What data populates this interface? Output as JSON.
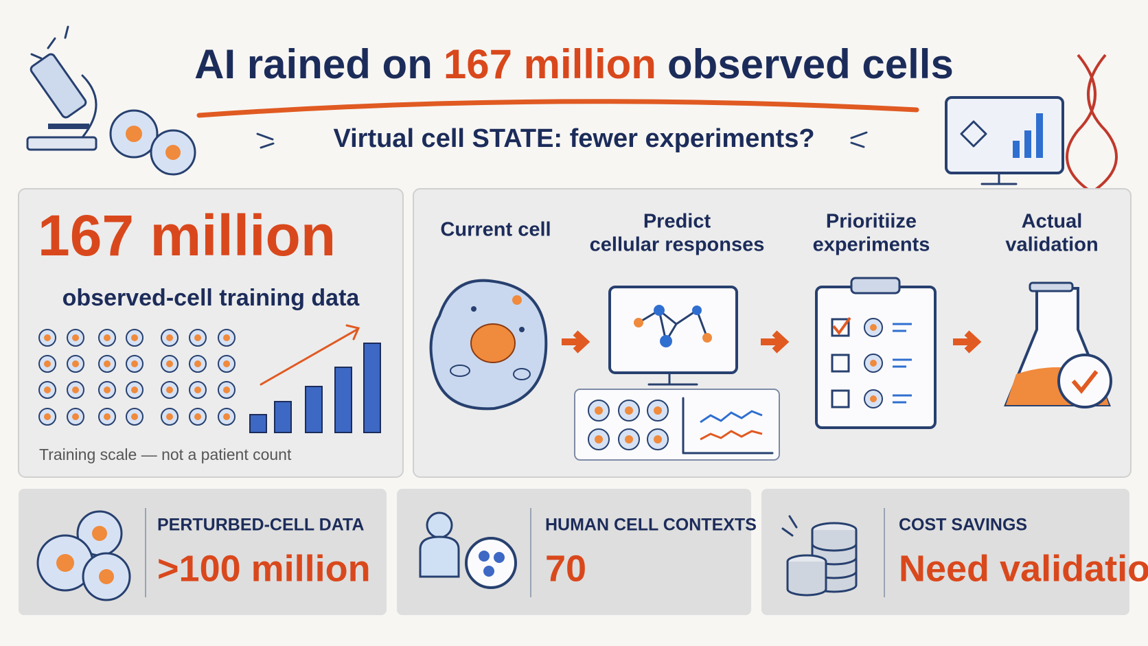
{
  "header": {
    "title_parts": [
      "AI rained on",
      "167 million",
      "observed cells"
    ],
    "subtitle": "Virtual cell STATE: fewer experiments?"
  },
  "scale_panel": {
    "headline": "167 million",
    "subhead": "observed-cell training data",
    "caption": "Training scale — not a patient count"
  },
  "workflow": {
    "steps": [
      {
        "lines": [
          "Current cell"
        ]
      },
      {
        "lines": [
          "Predict",
          "cellular responses"
        ]
      },
      {
        "lines": [
          "Prioritiize",
          "experiments"
        ]
      },
      {
        "lines": [
          "Actual",
          "validation"
        ]
      }
    ]
  },
  "stats": [
    {
      "label": "PERTURBED-CELL DATA",
      "value": ">100 million"
    },
    {
      "label": "HUMAN CELL CONTEXTS",
      "value": "70"
    },
    {
      "label": "COST SAVINGS",
      "value": "Need validation"
    }
  ]
}
